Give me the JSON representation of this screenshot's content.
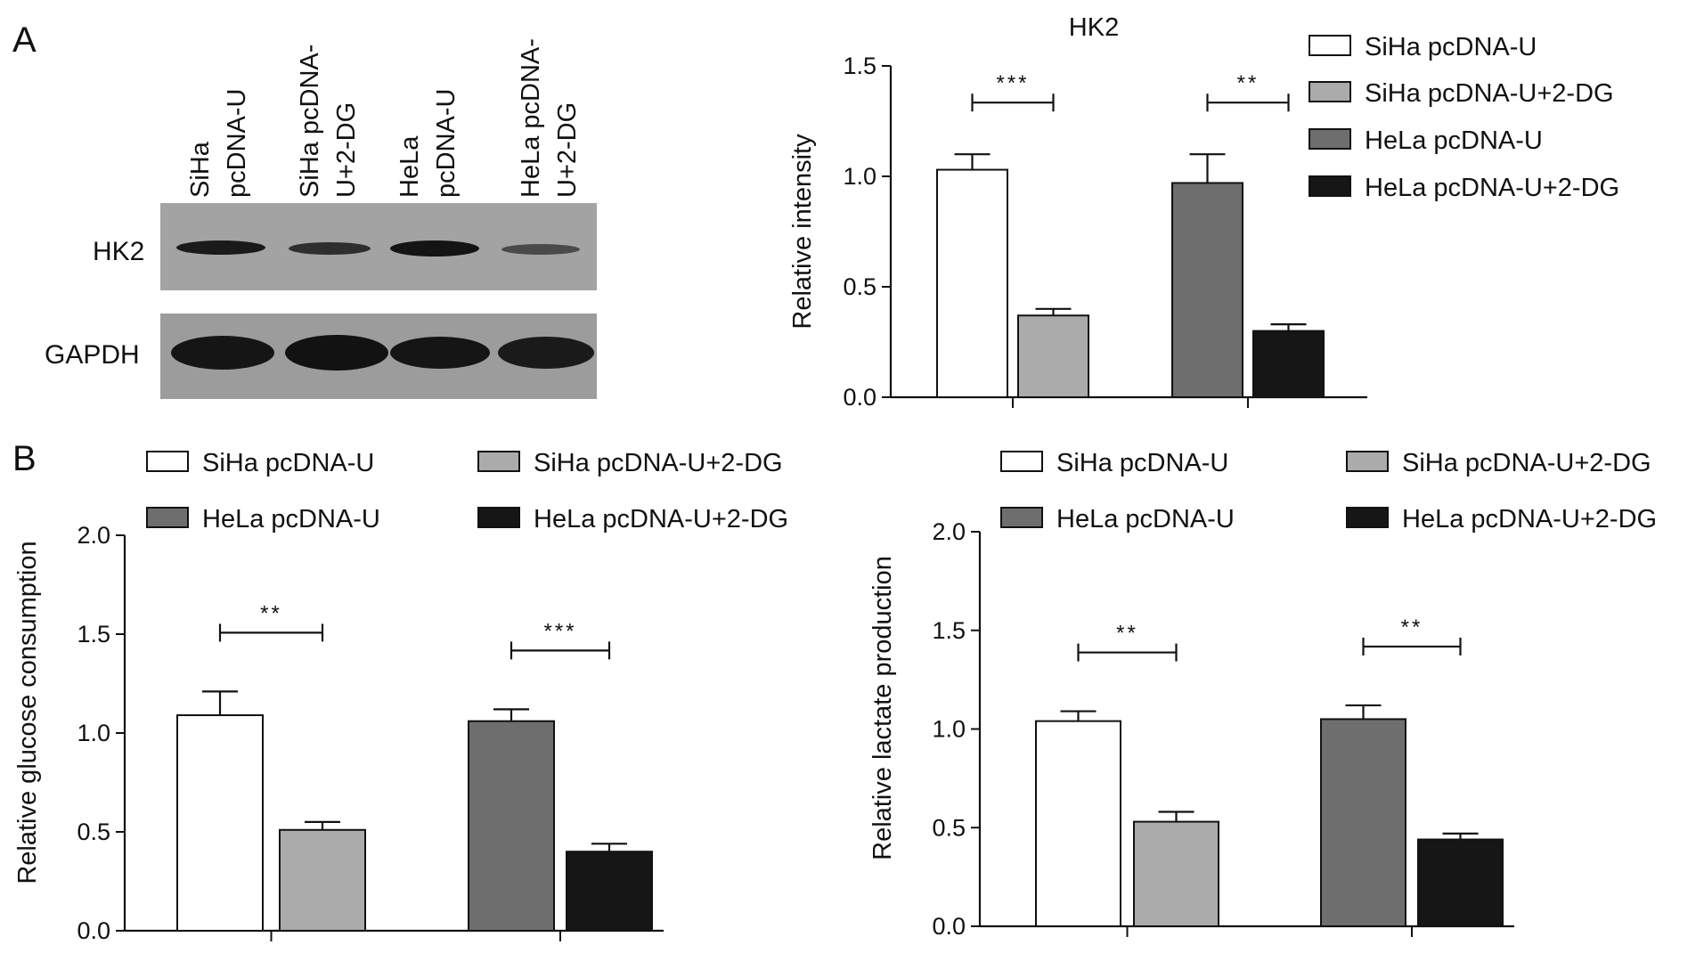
{
  "panels": {
    "a": "A",
    "b": "B"
  },
  "blot": {
    "lanes": [
      "SiHa pcDNA-U",
      "SiHa pcDNA-U+2-DG",
      "HeLa pcDNA-U",
      "HeLa pcDNA-U+2-DG"
    ],
    "lane_lines": [
      [
        "SiHa",
        "pcDNA-U"
      ],
      [
        "SiHa pcDNA-",
        "U+2-DG"
      ],
      [
        "HeLa",
        "pcDNA-U"
      ],
      [
        "HeLa pcDNA-",
        "U+2-DG"
      ]
    ],
    "bands": [
      "HK2",
      "GAPDH"
    ],
    "colors": {
      "background": "#a3a3a3",
      "band": "#1a1a1a"
    }
  },
  "colors": {
    "SiHa pcDNA-U": "#ffffff",
    "SiHa pcDNA-U+2-DG": "#ababab",
    "HeLa pcDNA-U": "#6e6e6e",
    "HeLa pcDNA-U+2-DG": "#161616"
  },
  "chart_data": [
    {
      "type": "bar",
      "title": "HK2",
      "ylabel": "Relative intensity",
      "xlabel": "",
      "ylim": [
        0,
        1.5
      ],
      "yticks": [
        "0.0",
        "0.5",
        "1.0",
        "1.5"
      ],
      "legend": "right",
      "series": [
        {
          "name": "SiHa pcDNA-U",
          "values": [
            1.03
          ],
          "errors": [
            0.07
          ]
        },
        {
          "name": "SiHa pcDNA-U+2-DG",
          "values": [
            0.37
          ],
          "errors": [
            0.03
          ]
        },
        {
          "name": "HeLa pcDNA-U",
          "values": [
            0.97
          ],
          "errors": [
            0.13
          ]
        },
        {
          "name": "HeLa pcDNA-U+2-DG",
          "values": [
            0.3
          ],
          "errors": [
            0.03
          ]
        }
      ],
      "significance": [
        "***",
        "**"
      ]
    },
    {
      "type": "bar",
      "title": "",
      "ylabel": "Relative glucose consumption",
      "xlabel": "",
      "ylim": [
        0,
        2.0
      ],
      "yticks": [
        "0.0",
        "0.5",
        "1.0",
        "1.5",
        "2.0"
      ],
      "legend": "top",
      "series": [
        {
          "name": "SiHa pcDNA-U",
          "values": [
            1.09
          ],
          "errors": [
            0.12
          ]
        },
        {
          "name": "SiHa pcDNA-U+2-DG",
          "values": [
            0.51
          ],
          "errors": [
            0.04
          ]
        },
        {
          "name": "HeLa pcDNA-U",
          "values": [
            1.06
          ],
          "errors": [
            0.06
          ]
        },
        {
          "name": "HeLa pcDNA-U+2-DG",
          "values": [
            0.4
          ],
          "errors": [
            0.04
          ]
        }
      ],
      "significance": [
        "**",
        "***"
      ]
    },
    {
      "type": "bar",
      "title": "",
      "ylabel": "Relative lactate production",
      "xlabel": "",
      "ylim": [
        0,
        2.0
      ],
      "yticks": [
        "0.0",
        "0.5",
        "1.0",
        "1.5",
        "2.0"
      ],
      "legend": "top",
      "series": [
        {
          "name": "SiHa pcDNA-U",
          "values": [
            1.04
          ],
          "errors": [
            0.05
          ]
        },
        {
          "name": "SiHa pcDNA-U+2-DG",
          "values": [
            0.53
          ],
          "errors": [
            0.05
          ]
        },
        {
          "name": "HeLa pcDNA-U",
          "values": [
            1.05
          ],
          "errors": [
            0.07
          ]
        },
        {
          "name": "HeLa pcDNA-U+2-DG",
          "values": [
            0.44
          ],
          "errors": [
            0.03
          ]
        }
      ],
      "significance": [
        "**",
        "**"
      ]
    }
  ]
}
